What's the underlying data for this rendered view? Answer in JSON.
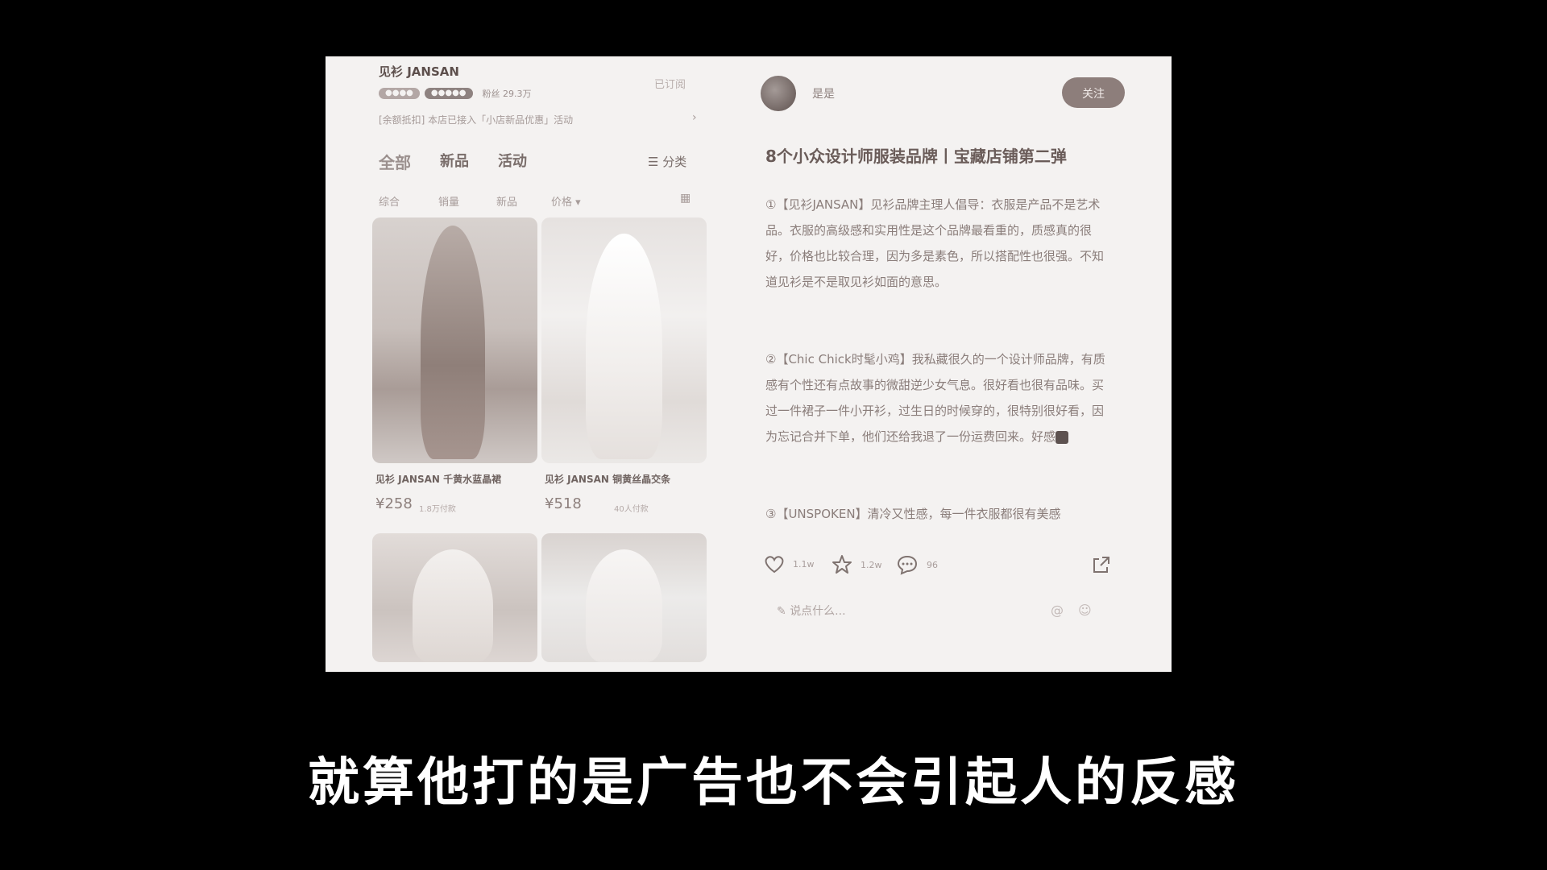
{
  "shop": {
    "title": "见衫 JANSAN",
    "subscribed": "已订阅",
    "badge1": "●●●●",
    "badge2": "●●●●●",
    "fans": "粉丝 29.3万",
    "notice": "[余额抵扣] 本店已接入「小店新品优惠」活动",
    "tabs": [
      "全部",
      "新品",
      "活动"
    ],
    "category": "分类",
    "filters": [
      "综合",
      "销量",
      "新品",
      "价格"
    ]
  },
  "products": [
    {
      "name": "见衫 JANSAN 千黄水蓝晶裙",
      "price": "¥258",
      "sold": "1.8万付款"
    },
    {
      "name": "见衫 JANSAN 铜黄丝晶交条",
      "price": "¥518",
      "sold": "40人付款"
    }
  ],
  "post": {
    "author": "是是",
    "follow": "关注",
    "title": "8个小众设计师服装品牌丨宝藏店铺第二弹",
    "paragraphs": [
      "①【见衫JANSAN】见衫品牌主理人倡导：衣服是产品不是艺术品。衣服的高级感和实用性是这个品牌最看重的，质感真的很好，价格也比较合理，因为多是素色，所以搭配性也很强。不知道见衫是不是取见衫如面的意思。",
      "②【Chic Chick时髦小鸡】我私藏很久的一个设计师品牌，有质感有个性还有点故事的微甜逆少女气息。很好看也很有品味。买过一件裙子一件小开衫，过生日的时候穿的，很特别很好看，因为忘记合并下单，他们还给我退了一份运费回来。好感",
      "③【UNSPOKEN】清冷又性感，每一件衣服都很有美感"
    ],
    "likes": "1.1w",
    "stars": "1.2w",
    "comments": "96",
    "comment_placeholder": "说点什么..."
  },
  "subtitle": "就算他打的是广告也不会引起人的反感",
  "colors": {
    "background": "#000000",
    "panel": "#f4f2f1",
    "accent": "#8d7e7b"
  },
  "icons": [
    "heart-icon",
    "star-icon",
    "comment-icon",
    "share-icon",
    "at-icon",
    "emoji-icon",
    "grid-icon",
    "menu-icon",
    "chevron-right-icon"
  ]
}
